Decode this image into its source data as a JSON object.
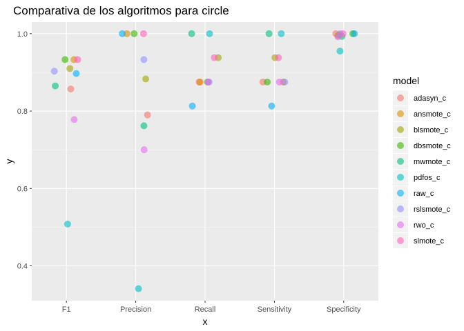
{
  "chart_data": {
    "type": "scatter",
    "title": "Comparativa de los algoritmos para circle",
    "xlabel": "x",
    "ylabel": "y",
    "categories": [
      "F1",
      "Precision",
      "Recall",
      "Sensitivity",
      "Specificity"
    ],
    "ylim": [
      0.31,
      1.03
    ],
    "yticks": [
      0.4,
      0.6,
      0.8,
      1.0
    ],
    "ytick_labels": [
      "0.4",
      "0.6",
      "0.8",
      "1.0"
    ],
    "grid": true,
    "legend": {
      "title": "model",
      "position": "right"
    },
    "series": [
      {
        "name": "adasyn_c",
        "color": "#F8766D",
        "points": [
          [
            "F1",
            0.857
          ],
          [
            "Precision",
            0.79
          ],
          [
            "Recall",
            0.875
          ],
          [
            "Sensitivity",
            0.875
          ],
          [
            "Specificity",
            1.0
          ]
        ]
      },
      {
        "name": "ansmote_c",
        "color": "#D89000",
        "points": [
          [
            "F1",
            0.933
          ],
          [
            "Precision",
            1.0
          ],
          [
            "Recall",
            0.875
          ],
          [
            "Sensitivity",
            0.875
          ],
          [
            "Specificity",
            0.997
          ]
        ]
      },
      {
        "name": "blsmote_c",
        "color": "#A3A500",
        "points": [
          [
            "F1",
            0.91
          ],
          [
            "Precision",
            0.883
          ],
          [
            "Recall",
            0.938
          ],
          [
            "Sensitivity",
            0.938
          ],
          [
            "Specificity",
            0.995
          ]
        ]
      },
      {
        "name": "dbsmote_c",
        "color": "#39B600",
        "points": [
          [
            "F1",
            0.933
          ],
          [
            "Precision",
            1.0
          ],
          [
            "Recall",
            0.875
          ],
          [
            "Sensitivity",
            0.875
          ],
          [
            "Specificity",
            1.0
          ]
        ]
      },
      {
        "name": "mwmote_c",
        "color": "#00BF7D",
        "points": [
          [
            "F1",
            0.865
          ],
          [
            "Precision",
            0.762
          ],
          [
            "Recall",
            1.0
          ],
          [
            "Sensitivity",
            1.0
          ],
          [
            "Specificity",
            0.993
          ]
        ]
      },
      {
        "name": "pdfos_c",
        "color": "#00BFC4",
        "points": [
          [
            "F1",
            0.508
          ],
          [
            "Precision",
            0.341
          ],
          [
            "Recall",
            1.0
          ],
          [
            "Sensitivity",
            1.0
          ],
          [
            "Specificity",
            0.955
          ]
        ]
      },
      {
        "name": "raw_c",
        "color": "#00B0F6",
        "points": [
          [
            "F1",
            0.897
          ],
          [
            "Precision",
            1.0
          ],
          [
            "Recall",
            0.813
          ],
          [
            "Sensitivity",
            0.813
          ],
          [
            "Specificity",
            1.0
          ]
        ]
      },
      {
        "name": "rslsmote_c",
        "color": "#9590FF",
        "points": [
          [
            "F1",
            0.903
          ],
          [
            "Precision",
            0.933
          ],
          [
            "Recall",
            0.875
          ],
          [
            "Sensitivity",
            0.875
          ],
          [
            "Specificity",
            1.0
          ]
        ]
      },
      {
        "name": "rwo_c",
        "color": "#E76BF3",
        "points": [
          [
            "F1",
            0.778
          ],
          [
            "Precision",
            0.7
          ],
          [
            "Recall",
            0.875
          ],
          [
            "Sensitivity",
            0.875
          ],
          [
            "Specificity",
            0.992
          ]
        ]
      },
      {
        "name": "slmote_c",
        "color": "#FF62BC",
        "points": [
          [
            "F1",
            0.933
          ],
          [
            "Precision",
            1.0
          ],
          [
            "Recall",
            0.938
          ],
          [
            "Sensitivity",
            0.938
          ],
          [
            "Specificity",
            1.0
          ]
        ]
      }
    ]
  }
}
